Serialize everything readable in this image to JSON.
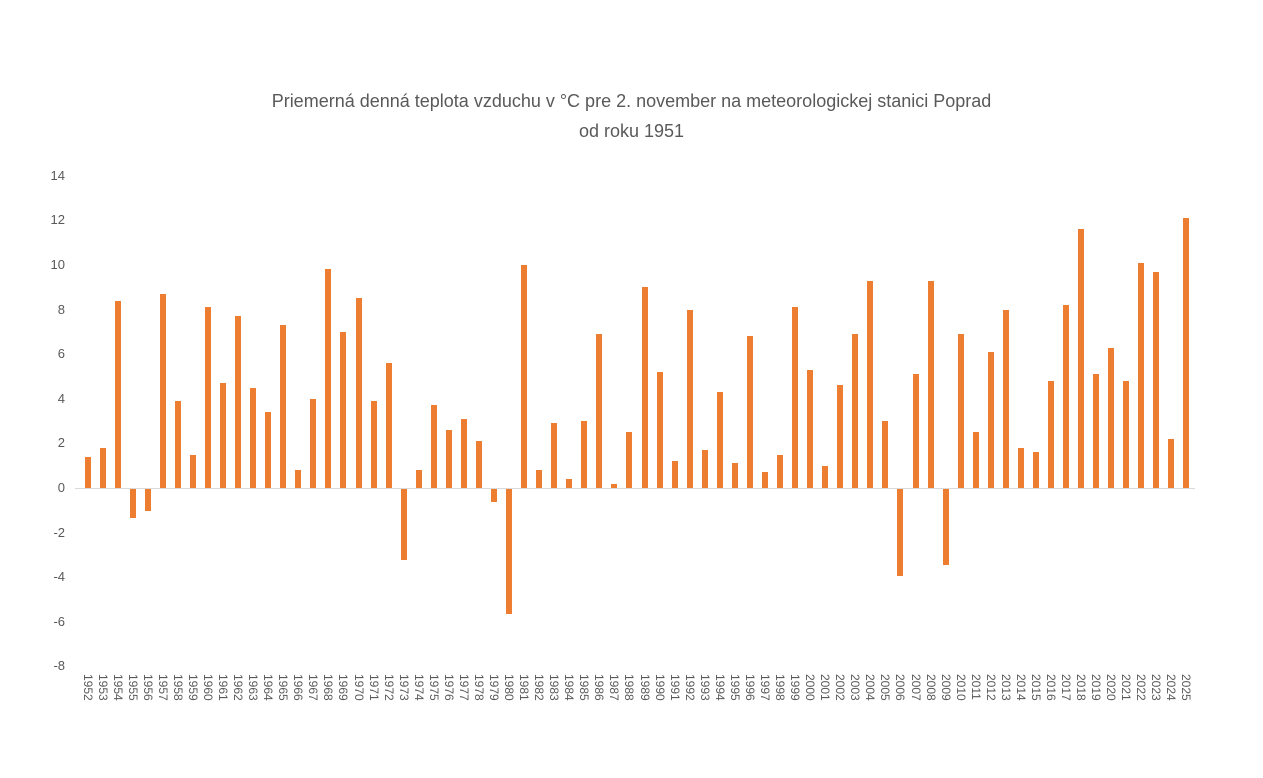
{
  "title": {
    "line1": "Priemerná denná teplota vzduchu v °C pre 2. november na meteorologickej stanici Poprad",
    "line2": "od roku 1951"
  },
  "chart_data": {
    "type": "bar",
    "title": "Priemerná denná teplota vzduchu v °C pre 2. november na meteorologickej stanici Poprad od roku 1951",
    "categories": [
      1952,
      1953,
      1954,
      1955,
      1956,
      1957,
      1958,
      1959,
      1960,
      1961,
      1962,
      1963,
      1964,
      1965,
      1966,
      1967,
      1968,
      1969,
      1970,
      1971,
      1972,
      1973,
      1974,
      1975,
      1976,
      1977,
      1978,
      1979,
      1980,
      1981,
      1982,
      1983,
      1984,
      1985,
      1986,
      1987,
      1988,
      1989,
      1990,
      1991,
      1992,
      1993,
      1994,
      1995,
      1996,
      1997,
      1998,
      1999,
      2000,
      2001,
      2002,
      2003,
      2004,
      2005,
      2006,
      2007,
      2008,
      2009,
      2010,
      2011,
      2012,
      2013,
      2014,
      2015,
      2016,
      2017,
      2018,
      2019,
      2020,
      2021,
      2022,
      2023,
      2024,
      2025
    ],
    "values": [
      1.4,
      1.8,
      8.4,
      -1.3,
      -1.0,
      8.7,
      3.9,
      1.5,
      8.1,
      4.7,
      7.7,
      4.5,
      3.4,
      7.3,
      0.8,
      4.0,
      9.8,
      7.0,
      8.5,
      3.9,
      5.6,
      -3.2,
      0.8,
      3.7,
      2.6,
      3.1,
      2.1,
      -0.6,
      -5.6,
      10.0,
      0.8,
      2.9,
      0.4,
      3.0,
      6.9,
      0.2,
      2.5,
      9.0,
      5.2,
      1.2,
      8.0,
      1.7,
      4.3,
      1.1,
      6.8,
      0.7,
      1.5,
      8.1,
      5.3,
      1.0,
      4.6,
      6.9,
      9.3,
      3.0,
      -3.9,
      5.1,
      9.3,
      -3.4,
      6.9,
      2.5,
      6.1,
      8.0,
      1.8,
      1.6,
      4.8,
      8.2,
      11.6,
      5.1,
      6.3,
      4.8,
      10.1,
      9.7,
      2.2,
      12.1
    ],
    "yticks": [
      14,
      12,
      10,
      8,
      6,
      4,
      2,
      0,
      -2,
      -4,
      -6,
      -8
    ],
    "ylim": [
      -8,
      14
    ],
    "xlabel": "",
    "ylabel": "",
    "grid": false,
    "legend": false,
    "bar_color": "#ed7d31",
    "axis_label_color": "#595959",
    "baseline_color": "#d9d9d9",
    "background_color": "#ffffff"
  }
}
